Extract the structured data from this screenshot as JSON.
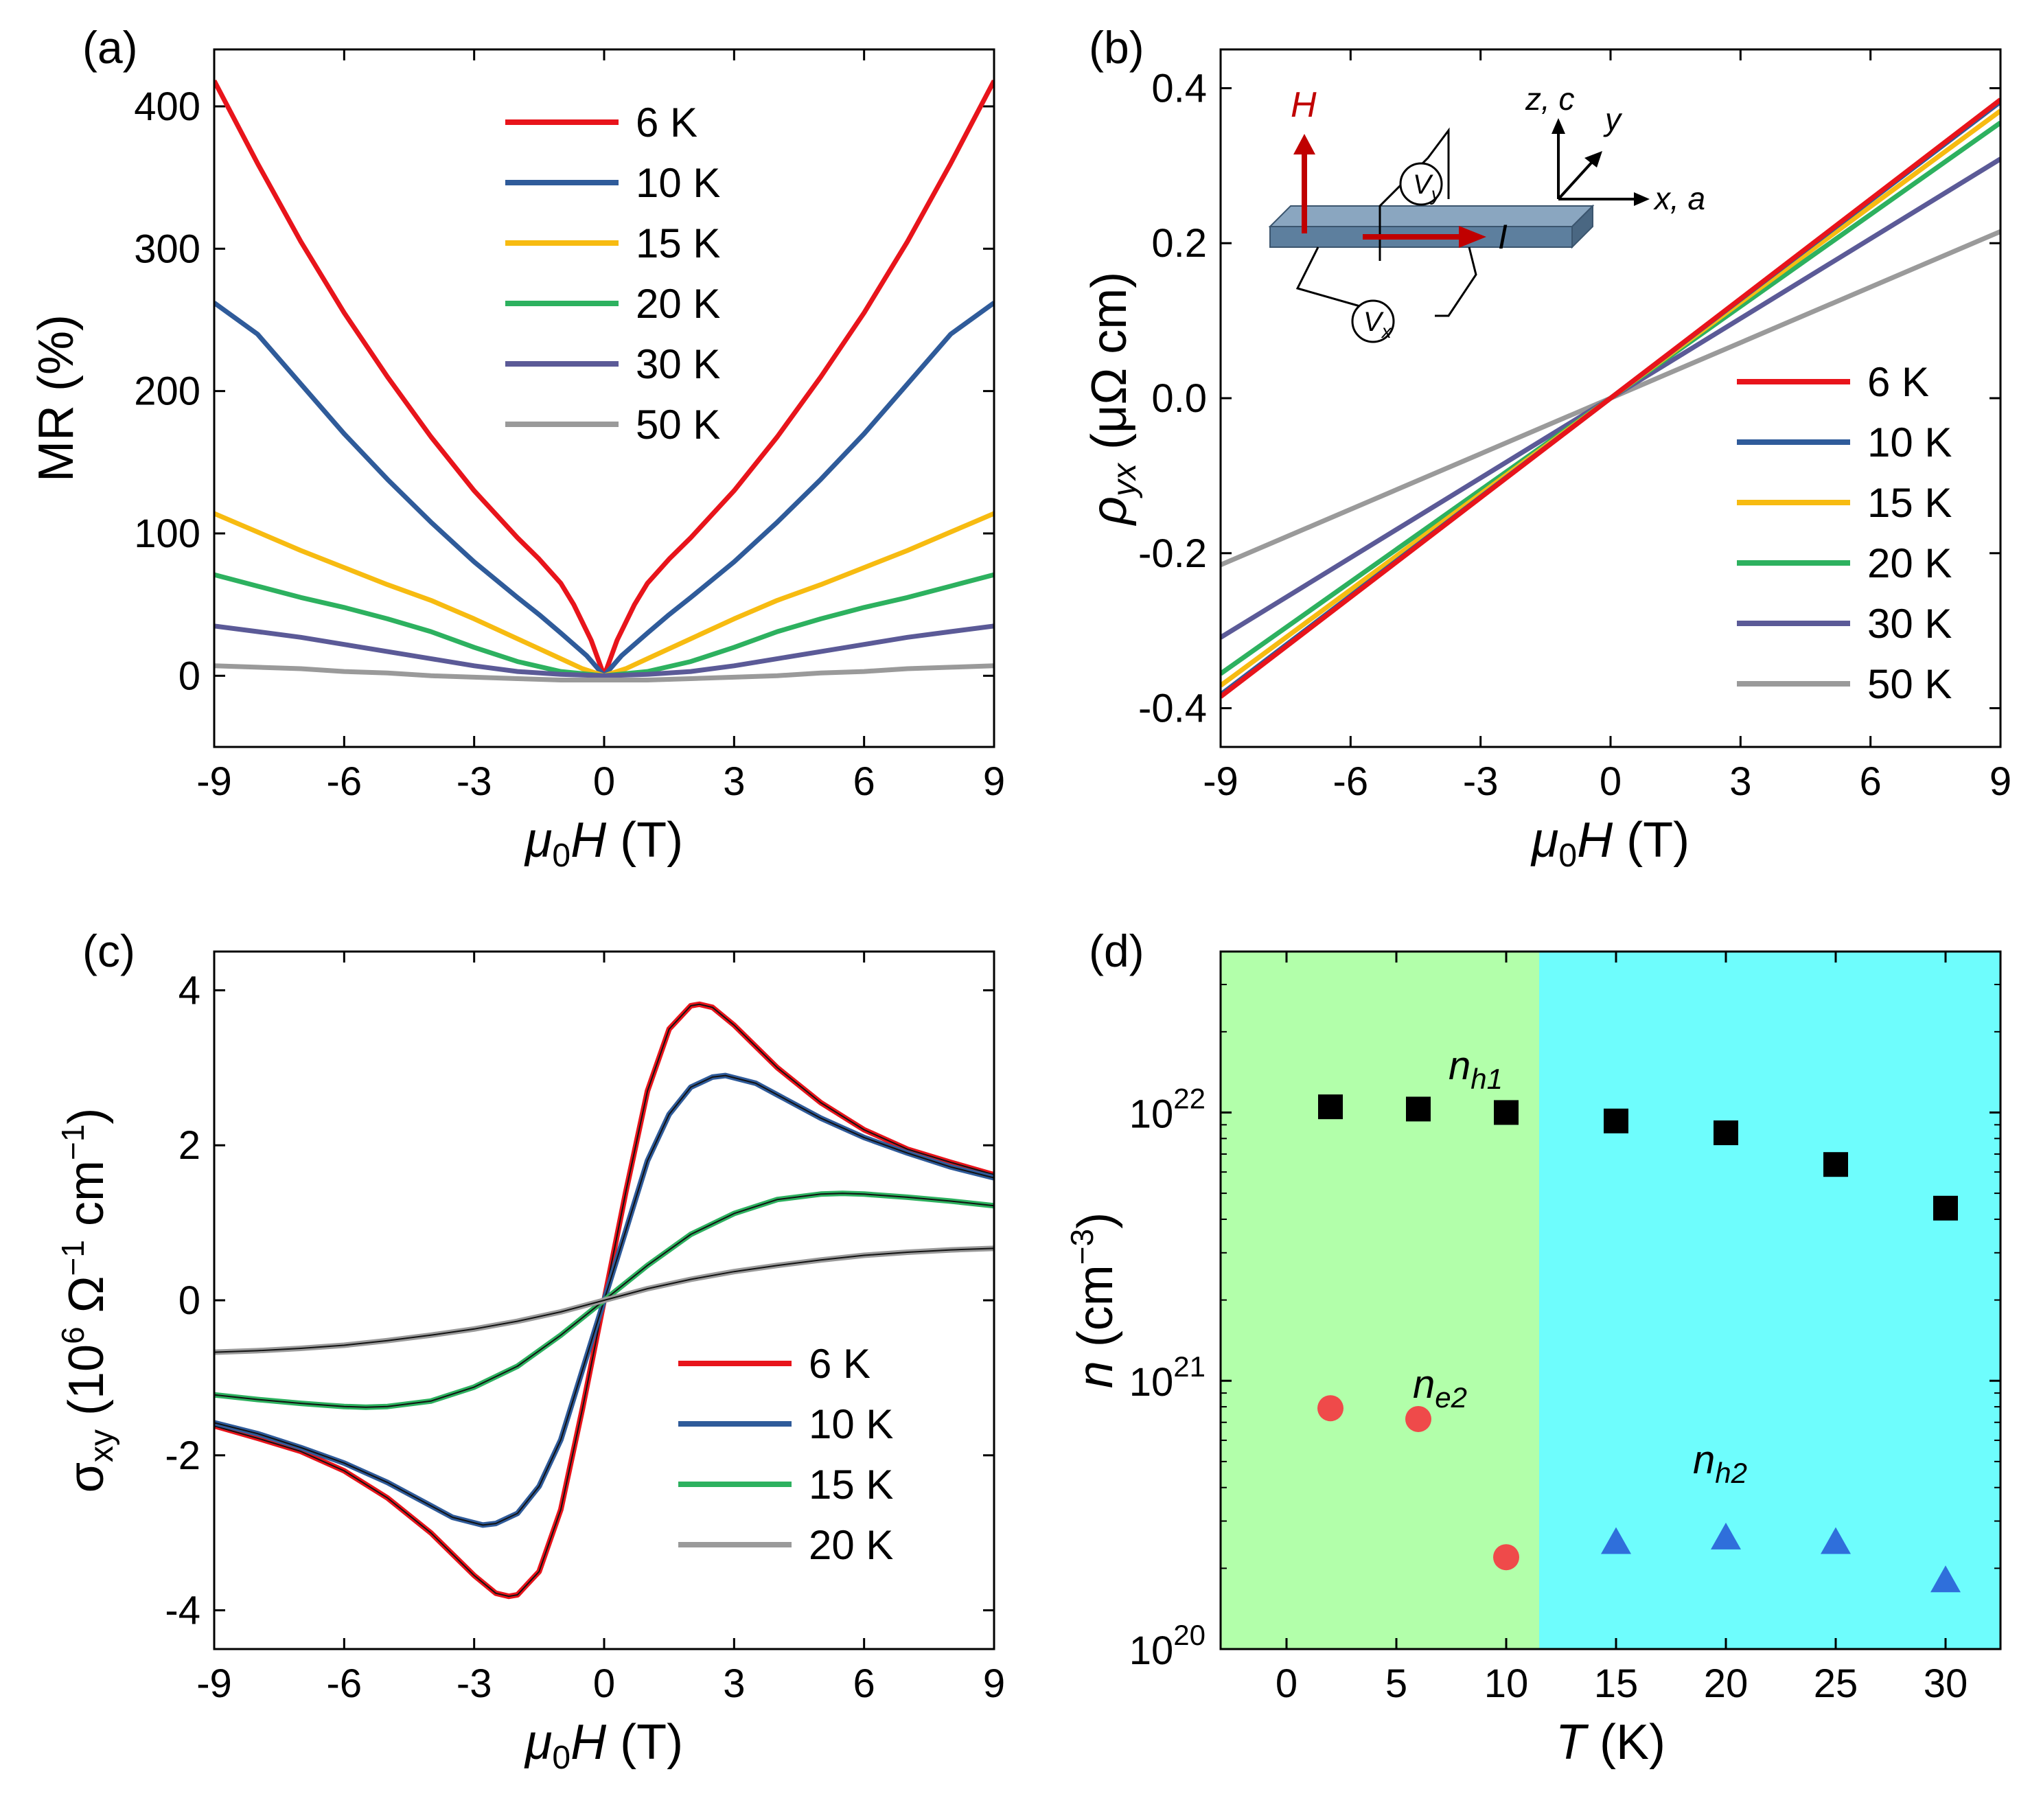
{
  "chart_data": [
    {
      "id": "a",
      "panel_label": "(a)",
      "type": "line",
      "xlabel": "μ0H (T)",
      "xlabel_main": "μ",
      "xlabel_sub": "0",
      "xlabel_var": "H",
      "xlabel_unit": " (T)",
      "ylabel": "MR (%)",
      "xlim": [
        -9,
        9
      ],
      "ylim": [
        -50,
        440
      ],
      "xticks": [
        "-9",
        "-6",
        "-3",
        "0",
        "3",
        "6",
        "9"
      ],
      "xtick_values": [
        -9,
        -6,
        -3,
        0,
        3,
        6,
        9
      ],
      "yticks": [
        "0",
        "100",
        "200",
        "300",
        "400"
      ],
      "ytick_values": [
        0,
        100,
        200,
        300,
        400
      ],
      "legend_position": "top-right",
      "series": [
        {
          "name": "6 K",
          "color": "#e8141b",
          "x": [
            0,
            0.3,
            0.7,
            1,
            1.5,
            2,
            3,
            4,
            5,
            6,
            7,
            8,
            9
          ],
          "y": [
            0,
            25,
            50,
            65,
            82,
            97,
            130,
            168,
            210,
            255,
            305,
            360,
            418
          ]
        },
        {
          "name": "10 K",
          "color": "#2f5b9a",
          "x": [
            0,
            0.4,
            1,
            1.5,
            2,
            3,
            4,
            5,
            6,
            7,
            8,
            9
          ],
          "y": [
            0,
            14,
            30,
            43,
            55,
            80,
            108,
            138,
            170,
            205,
            240,
            262
          ]
        },
        {
          "name": "15 K",
          "color": "#f7bb11",
          "x": [
            0,
            0.5,
            1,
            2,
            3,
            4,
            5,
            6,
            7,
            8,
            9
          ],
          "y": [
            0,
            5,
            12,
            26,
            40,
            53,
            64,
            76,
            88,
            101,
            114
          ]
        },
        {
          "name": "20 K",
          "color": "#2db15f",
          "x": [
            0,
            1,
            2,
            3,
            4,
            5,
            6,
            7,
            8,
            9
          ],
          "y": [
            0,
            3,
            10,
            20,
            31,
            40,
            48,
            55,
            63,
            71
          ]
        },
        {
          "name": "30 K",
          "color": "#5b5a97",
          "x": [
            0,
            1,
            2,
            3,
            4,
            5,
            6,
            7,
            8,
            9
          ],
          "y": [
            0,
            1,
            3,
            7,
            12,
            17,
            22,
            27,
            31,
            35
          ]
        },
        {
          "name": "50 K",
          "color": "#9a9a9a",
          "x": [
            0,
            1,
            2,
            3,
            4,
            5,
            6,
            7,
            8,
            9
          ],
          "y": [
            -3,
            -3,
            -2,
            -1,
            0,
            2,
            3,
            5,
            6,
            7
          ]
        }
      ]
    },
    {
      "id": "b",
      "panel_label": "(b)",
      "type": "line",
      "xlabel": "μ0H (T)",
      "xlabel_main": "μ",
      "xlabel_sub": "0",
      "xlabel_var": "H",
      "xlabel_unit": " (T)",
      "ylabel": "ρyx (μΩ cm)",
      "ylabel_main": "ρ",
      "ylabel_sub": "yx",
      "ylabel_unit": " (μΩ cm)",
      "xlim": [
        -9,
        9
      ],
      "ylim": [
        -0.45,
        0.45
      ],
      "xticks": [
        "-9",
        "-6",
        "-3",
        "0",
        "3",
        "6",
        "9"
      ],
      "xtick_values": [
        -9,
        -6,
        -3,
        0,
        3,
        6,
        9
      ],
      "yticks": [
        "-0.4",
        "-0.2",
        "0.0",
        "0.2",
        "0.4"
      ],
      "ytick_values": [
        -0.4,
        -0.2,
        0.0,
        0.2,
        0.4
      ],
      "legend_position": "bottom-right",
      "inset_labels": {
        "field": "H",
        "current": "I",
        "vy_main": "V",
        "vy_sub": "y",
        "vx_main": "V",
        "vx_sub": "x",
        "axis_z": "z, c",
        "axis_y": "y",
        "axis_x": "x, a"
      },
      "series": [
        {
          "name": "6 K",
          "color": "#e8141b",
          "slope": 0.0428
        },
        {
          "name": "10 K",
          "color": "#2f5b9a",
          "slope": 0.0425
        },
        {
          "name": "15 K",
          "color": "#f7bb11",
          "slope": 0.0412
        },
        {
          "name": "20 K",
          "color": "#2db15f",
          "slope": 0.0395
        },
        {
          "name": "30 K",
          "color": "#5b5a97",
          "slope": 0.0343
        },
        {
          "name": "50 K",
          "color": "#9a9a9a",
          "slope": 0.0239
        }
      ]
    },
    {
      "id": "c",
      "panel_label": "(c)",
      "type": "line",
      "xlabel": "μ0H (T)",
      "xlabel_main": "μ",
      "xlabel_sub": "0",
      "xlabel_var": "H",
      "xlabel_unit": " (T)",
      "ylabel": "σxy (10^6 Ω^-1 cm^-1)",
      "ylabel_main": "σ",
      "ylabel_sub": "xy",
      "ylabel_open": " (10",
      "ylabel_exp1": "6",
      "ylabel_mid": " Ω",
      "ylabel_exp2": "−1",
      "ylabel_mid2": " cm",
      "ylabel_exp3": "−1",
      "ylabel_close": ")",
      "xlim": [
        -9,
        9
      ],
      "ylim": [
        -4.5,
        4.5
      ],
      "xticks": [
        "-9",
        "-6",
        "-3",
        "0",
        "3",
        "6",
        "9"
      ],
      "xtick_values": [
        -9,
        -6,
        -3,
        0,
        3,
        6,
        9
      ],
      "yticks": [
        "-4",
        "-2",
        "0",
        "2",
        "4"
      ],
      "ytick_values": [
        -4,
        -2,
        0,
        2,
        4
      ],
      "legend_position": "bottom-right",
      "series": [
        {
          "name": "6 K",
          "color": "#e8141b",
          "x": [
            0,
            0.5,
            1,
            1.5,
            2,
            2.2,
            2.5,
            3,
            4,
            5,
            6,
            7,
            8,
            9
          ],
          "y": [
            0,
            1.4,
            2.7,
            3.5,
            3.8,
            3.82,
            3.78,
            3.55,
            3.0,
            2.55,
            2.2,
            1.95,
            1.78,
            1.62
          ]
        },
        {
          "name": "10 K",
          "color": "#2f5b9a",
          "x": [
            0,
            0.5,
            1,
            1.5,
            2,
            2.5,
            2.8,
            3.5,
            4,
            5,
            6,
            7,
            8,
            9
          ],
          "y": [
            0,
            0.9,
            1.8,
            2.4,
            2.75,
            2.88,
            2.9,
            2.8,
            2.65,
            2.35,
            2.1,
            1.9,
            1.72,
            1.58
          ]
        },
        {
          "name": "15 K",
          "color": "#2db15f",
          "x": [
            0,
            1,
            2,
            3,
            4,
            5,
            5.5,
            6,
            7,
            8,
            9
          ],
          "y": [
            0,
            0.45,
            0.85,
            1.12,
            1.3,
            1.37,
            1.38,
            1.37,
            1.33,
            1.28,
            1.22
          ]
        },
        {
          "name": "20 K",
          "color": "#9a9a9a",
          "x": [
            0,
            1,
            2,
            3,
            4,
            5,
            6,
            7,
            8,
            9
          ],
          "y": [
            0,
            0.15,
            0.27,
            0.37,
            0.45,
            0.52,
            0.58,
            0.62,
            0.65,
            0.67
          ]
        }
      ]
    },
    {
      "id": "d",
      "panel_label": "(d)",
      "type": "scatter",
      "xlabel": "T (K)",
      "xlabel_var": "T",
      "xlabel_unit": " (K)",
      "ylabel": "n (cm^-3)",
      "ylabel_var": "n",
      "ylabel_unit_open": " (cm",
      "ylabel_exp": "−3",
      "ylabel_close": ")",
      "yscale": "log",
      "xlim": [
        -3,
        32.5
      ],
      "ylim_log10": [
        20,
        22.6
      ],
      "xticks": [
        "0",
        "5",
        "10",
        "15",
        "20",
        "25",
        "30"
      ],
      "xtick_values": [
        0,
        5,
        10,
        15,
        20,
        25,
        30
      ],
      "yticks": [
        {
          "base": "10",
          "exp": "20",
          "log10": 20
        },
        {
          "base": "10",
          "exp": "21",
          "log10": 21
        },
        {
          "base": "10",
          "exp": "22",
          "log10": 22
        }
      ],
      "regions": [
        {
          "from": -3,
          "to": 11.5,
          "color": "#b2ffaa"
        },
        {
          "from": 11.5,
          "to": 32.5,
          "color": "#6efdfd"
        }
      ],
      "series": [
        {
          "name": "nh1",
          "label_main": "n",
          "label_sub": "h1",
          "marker": "square",
          "color": "#000000",
          "x": [
            2,
            6,
            10,
            15,
            20,
            25,
            30
          ],
          "y": [
            1.05e+22,
            1.03e+22,
            1e+22,
            9.3e+21,
            8.4e+21,
            6.4e+21,
            4.4e+21
          ]
        },
        {
          "name": "ne2",
          "label_main": "n",
          "label_sub": "e2",
          "marker": "circle",
          "color": "#ef4a4a",
          "x": [
            2,
            6,
            10
          ],
          "y": [
            7.9e+20,
            7.2e+20,
            2.2e+20
          ]
        },
        {
          "name": "nh2",
          "label_main": "n",
          "label_sub": "h2",
          "marker": "triangle",
          "color": "#2f6fdb",
          "x": [
            15,
            20,
            25,
            30
          ],
          "y": [
            2.5e+20,
            2.6e+20,
            2.5e+20,
            1.8e+20
          ]
        }
      ]
    }
  ]
}
